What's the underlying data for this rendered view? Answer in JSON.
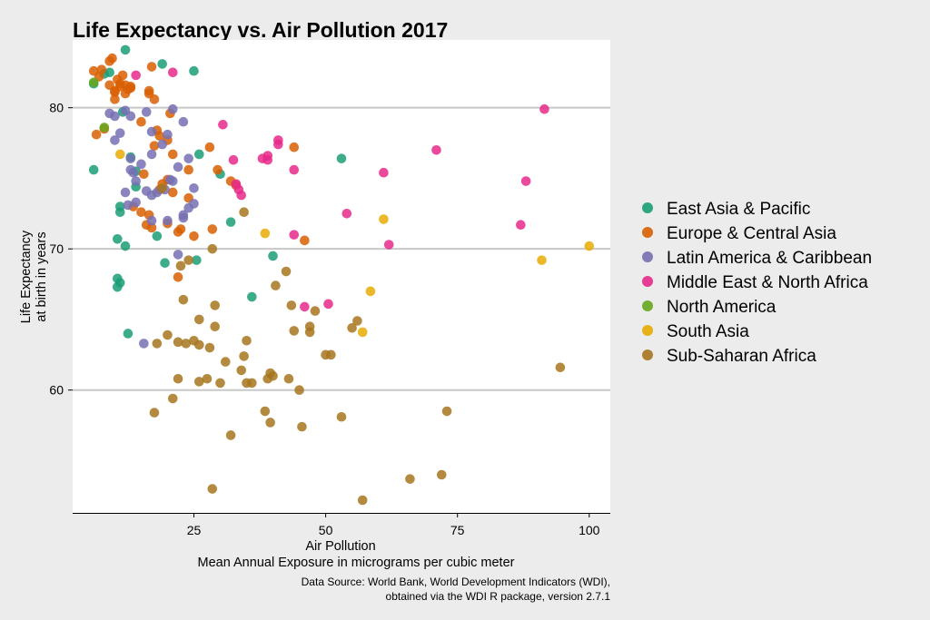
{
  "chart_data": {
    "type": "scatter",
    "title": "Life Expectancy vs. Air Pollution 2017",
    "xlabel": "Air Pollution",
    "xlabel_sub": "Mean Annual Exposure in micrograms per cubic meter",
    "ylabel": "Life Expectancy",
    "ylabel_sub": "at birth in years",
    "caption_line1": "Data Source: World Bank, World Development Indicators (WDI),",
    "caption_line2": "obtained via the WDI R package, version 2.7.1",
    "xlim": [
      2,
      104
    ],
    "ylim": [
      51.3,
      84.8
    ],
    "xticks": [
      25,
      50,
      75,
      100
    ],
    "yticks": [
      60,
      70,
      80
    ],
    "grid": "horizontal",
    "legend_position": "right",
    "series": [
      {
        "name": "East Asia & Pacific",
        "color": "#1b9e77",
        "x": [
          12,
          19,
          25,
          6,
          8,
          9,
          6,
          11.5,
          13,
          14,
          14,
          26,
          30,
          32,
          53,
          11,
          11,
          10.5,
          12,
          18,
          19.5,
          25.5,
          36,
          40,
          10.5,
          11,
          10.5,
          12.5
        ],
        "y": [
          84.1,
          83.1,
          82.6,
          81.7,
          82.4,
          82.5,
          75.6,
          79.7,
          76.5,
          75.5,
          74.4,
          76.7,
          75.3,
          71.9,
          76.4,
          73.0,
          72.6,
          70.7,
          70.2,
          70.9,
          69.0,
          69.2,
          66.6,
          69.5,
          67.9,
          67.6,
          67.3,
          64.0
        ]
      },
      {
        "name": "Europe & Central Asia",
        "color": "#d95f02",
        "x": [
          6,
          7,
          7.5,
          9,
          9.5,
          10,
          10.5,
          11,
          11.5,
          12,
          12.5,
          13,
          9,
          10,
          11,
          12,
          13,
          6.5,
          8,
          10,
          15,
          17,
          16.5,
          17.5,
          16.5,
          20.5,
          18,
          18.5,
          17.5,
          20,
          21,
          24,
          28,
          20,
          21,
          24,
          18.5,
          19,
          15,
          16.5,
          22,
          25,
          22.5,
          28.5,
          29.5,
          32,
          33,
          44,
          46,
          22,
          16,
          17,
          15.5,
          13.5,
          20
        ],
        "y": [
          82.6,
          82.2,
          82.7,
          83.3,
          83.5,
          81.2,
          82.0,
          81.5,
          82.3,
          81.6,
          81.3,
          81.5,
          81.6,
          81.1,
          81.7,
          81.0,
          81.4,
          78.1,
          78.5,
          80.6,
          79.0,
          82.9,
          81.2,
          80.6,
          81.0,
          79.6,
          78.4,
          78.0,
          77.3,
          77.7,
          76.7,
          75.6,
          77.2,
          74.9,
          74.0,
          73.6,
          74.2,
          74.6,
          72.6,
          72.4,
          71.2,
          70.9,
          71.4,
          71.4,
          75.6,
          74.8,
          74.5,
          77.2,
          70.6,
          68.0,
          71.7,
          71.5,
          75.3,
          73.0,
          71.8
        ]
      },
      {
        "name": "Latin America & Caribbean",
        "color": "#7570b3",
        "x": [
          9,
          10,
          12,
          13,
          16,
          17,
          21,
          23,
          10,
          11,
          13,
          15,
          17,
          19,
          20,
          24,
          13,
          14,
          16,
          18,
          21,
          22,
          25,
          12,
          14,
          17,
          19.5,
          20.5,
          23,
          24,
          25,
          13.5,
          12.5,
          17,
          20,
          23,
          22,
          15.5
        ],
        "y": [
          79.6,
          79.4,
          79.8,
          79.4,
          79.7,
          78.3,
          79.9,
          79.0,
          77.7,
          78.2,
          76.4,
          76.0,
          76.7,
          77.4,
          78.1,
          76.4,
          75.6,
          74.8,
          74.1,
          74.0,
          74.8,
          75.8,
          74.3,
          74.0,
          73.3,
          73.8,
          74.2,
          74.9,
          72.2,
          72.9,
          73.2,
          75.4,
          73.1,
          72.0,
          72.0,
          72.4,
          69.6,
          63.3
        ]
      },
      {
        "name": "Middle East & North Africa",
        "color": "#e7298a",
        "x": [
          14,
          21,
          30.5,
          32.5,
          38,
          39,
          39,
          41,
          41,
          44,
          33,
          33.5,
          34,
          44,
          54,
          61,
          62,
          71,
          87,
          88,
          91.5,
          46,
          50.5
        ],
        "y": [
          82.3,
          82.5,
          78.8,
          76.3,
          76.4,
          76.6,
          76.3,
          77.7,
          77.4,
          71.0,
          74.6,
          74.2,
          73.8,
          75.6,
          72.5,
          75.4,
          70.3,
          77.0,
          71.7,
          74.8,
          79.9,
          65.9,
          66.1
        ]
      },
      {
        "name": "North America",
        "color": "#66a61e",
        "x": [
          6,
          8
        ],
        "y": [
          81.8,
          78.6
        ]
      },
      {
        "name": "South Asia",
        "color": "#e6ab02",
        "x": [
          11,
          38.5,
          57,
          58.5,
          61,
          91,
          100
        ],
        "y": [
          76.7,
          71.1,
          64.1,
          67.0,
          72.1,
          69.2,
          70.2
        ]
      },
      {
        "name": "Sub-Saharan Africa",
        "color": "#a6761d",
        "x": [
          19,
          22.5,
          24,
          28.5,
          34.5,
          40.5,
          42.5,
          43.5,
          48,
          23,
          26,
          28,
          29,
          31,
          35,
          39.5,
          44,
          47,
          20,
          25,
          26,
          22,
          27.5,
          30,
          34,
          35,
          38.5,
          39,
          40,
          43,
          45,
          50,
          56,
          45.5,
          18,
          17.5,
          23.5,
          26,
          22,
          21,
          34.5,
          47,
          51,
          53,
          55,
          66,
          72,
          73,
          94.5,
          57,
          29,
          32,
          36,
          28.5,
          39.5
        ],
        "y": [
          74.3,
          68.8,
          69.2,
          70.0,
          72.6,
          67.4,
          68.4,
          66.0,
          65.6,
          66.4,
          65.0,
          63.0,
          64.5,
          62.0,
          63.5,
          61.2,
          64.2,
          64.5,
          63.9,
          63.5,
          63.2,
          63.4,
          60.8,
          60.5,
          61.4,
          60.5,
          58.5,
          60.8,
          61.0,
          60.8,
          60.0,
          62.5,
          64.9,
          57.4,
          63.3,
          58.4,
          63.3,
          60.6,
          60.8,
          59.4,
          62.4,
          64.1,
          62.5,
          58.1,
          64.4,
          53.7,
          54.0,
          58.5,
          61.6,
          52.2,
          66.0,
          56.8,
          60.5,
          53.0,
          57.7
        ]
      }
    ]
  }
}
